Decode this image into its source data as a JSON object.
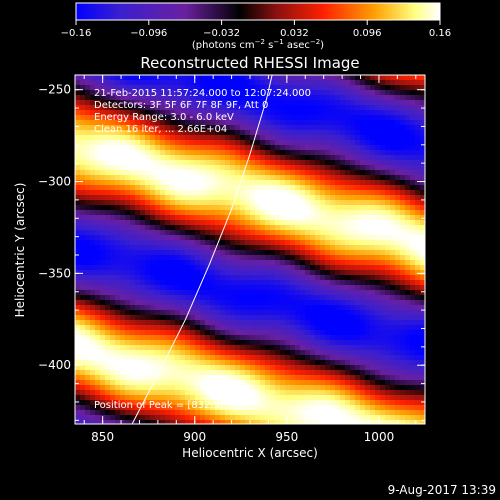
{
  "chart_data": {
    "type": "heatmap",
    "title": "Reconstructed RHESSI Image",
    "xlabel": "Heliocentric X (arcsec)",
    "ylabel": "Heliocentric Y (arcsec)",
    "xlim": [
      835,
      1025
    ],
    "ylim": [
      -432,
      -242
    ],
    "x_ticks": [
      {
        "value": 850,
        "label": "850"
      },
      {
        "value": 900,
        "label": "900"
      },
      {
        "value": 950,
        "label": "950"
      },
      {
        "value": 1000,
        "label": "1000"
      }
    ],
    "y_ticks": [
      {
        "value": -250,
        "label": "−250"
      },
      {
        "value": -300,
        "label": "−300"
      },
      {
        "value": -350,
        "label": "−350"
      },
      {
        "value": -400,
        "label": "−400"
      }
    ],
    "colorbar": {
      "range": [
        -0.16,
        0.16
      ],
      "ticks": [
        {
          "value": -0.16,
          "label": "−0.16"
        },
        {
          "value": -0.096,
          "label": "−0.096"
        },
        {
          "value": -0.032,
          "label": "−0.032"
        },
        {
          "value": 0.032,
          "label": "0.032"
        },
        {
          "value": 0.096,
          "label": "0.096"
        },
        {
          "value": 0.16,
          "label": "0.16"
        }
      ],
      "units": {
        "main": "(photons cm",
        "exp1": "−2",
        "mid1": " s",
        "exp2": "−1",
        "mid2": " asec",
        "exp3": "−2",
        "end": ")"
      },
      "colormap": [
        "#0000ff",
        "#3a1fd0",
        "#6a20a0",
        "#000000",
        "#8a1010",
        "#ff2000",
        "#ffa000",
        "#ffff80",
        "#ffffff"
      ]
    },
    "annotations": {
      "time_range": "21-Feb-2015 11:57:24.000 to 12:07:24.000",
      "detectors": "Detectors: 3F 5F 6F 7F 8F 9F, Att 0",
      "energy": "Energy Range: 3.0 - 6.0 keV",
      "clean": "Clean    16 iter, ... 2.66E+04",
      "peak": "Position of Peak = [832.5, ...]"
    },
    "limb_curve": [
      [
        866,
        -432
      ],
      [
        880,
        -405
      ],
      [
        895,
        -375
      ],
      [
        908,
        -345
      ],
      [
        920,
        -315
      ],
      [
        930,
        -285
      ],
      [
        939,
        -255
      ],
      [
        942,
        -242
      ]
    ],
    "bands": {
      "slope": -0.28,
      "period": 110,
      "phase_y_at_x850": -285,
      "amplitude": 0.16
    },
    "footer": "9-Aug-2017 13:39"
  }
}
